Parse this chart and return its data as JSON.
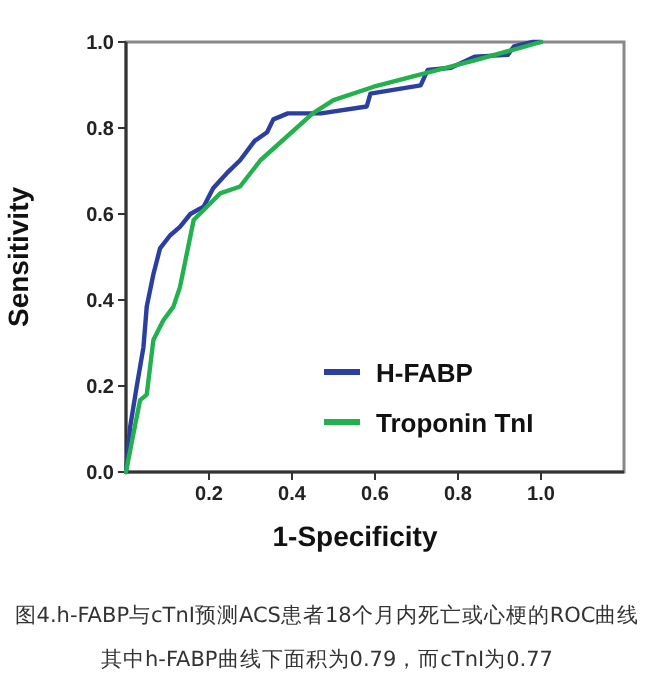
{
  "chart_data": {
    "type": "line",
    "xlabel": "1-Specificity",
    "ylabel": "Sensitivity",
    "xlim": [
      0,
      1.2
    ],
    "ylim": [
      0,
      1
    ],
    "xticks": [
      0.2,
      0.4,
      0.6,
      0.8,
      {
        "value": 1,
        "label": "1.0"
      }
    ],
    "yticks": [
      {
        "value": 0,
        "label": "0.0"
      },
      0.2,
      0.4,
      0.6,
      0.8,
      {
        "value": 1,
        "label": "1.0"
      }
    ],
    "grid": false,
    "legend": "bottom right",
    "marker": "none",
    "line_style": "solid",
    "series": [
      {
        "name": "H-FABP",
        "color": "#2b3fa0",
        "x": [
          0,
          0.01,
          0.026,
          0.042,
          0.05,
          0.066,
          0.082,
          0.106,
          0.13,
          0.155,
          0.187,
          0.21,
          0.243,
          0.275,
          0.31,
          0.34,
          0.355,
          0.39,
          0.47,
          0.58,
          0.589,
          0.71,
          0.727,
          0.783,
          0.84,
          0.92,
          0.935,
          0.98,
          1.0
        ],
        "values": [
          0,
          0.105,
          0.2,
          0.29,
          0.385,
          0.46,
          0.52,
          0.55,
          0.57,
          0.6,
          0.617,
          0.66,
          0.695,
          0.725,
          0.77,
          0.79,
          0.82,
          0.834,
          0.834,
          0.85,
          0.88,
          0.899,
          0.935,
          0.94,
          0.966,
          0.97,
          0.99,
          1.0,
          1.0
        ]
      },
      {
        "name": "Troponin TnI",
        "color": "#22b14c",
        "x": [
          0,
          0.018,
          0.034,
          0.05,
          0.066,
          0.09,
          0.114,
          0.13,
          0.147,
          0.163,
          0.195,
          0.227,
          0.275,
          0.324,
          0.45,
          0.5,
          0.597,
          0.84,
          1.0
        ],
        "values": [
          0,
          0.09,
          0.167,
          0.18,
          0.307,
          0.353,
          0.384,
          0.43,
          0.51,
          0.586,
          0.617,
          0.648,
          0.664,
          0.725,
          0.834,
          0.865,
          0.896,
          0.957,
          1.0
        ]
      }
    ],
    "annotations": [
      "图4.h-FABP与cTnI预测ACS患者18个月内死亡或心梗的ROC曲线",
      "其中h-FABP曲线下面积为0.79，而cTnI为0.77"
    ]
  }
}
